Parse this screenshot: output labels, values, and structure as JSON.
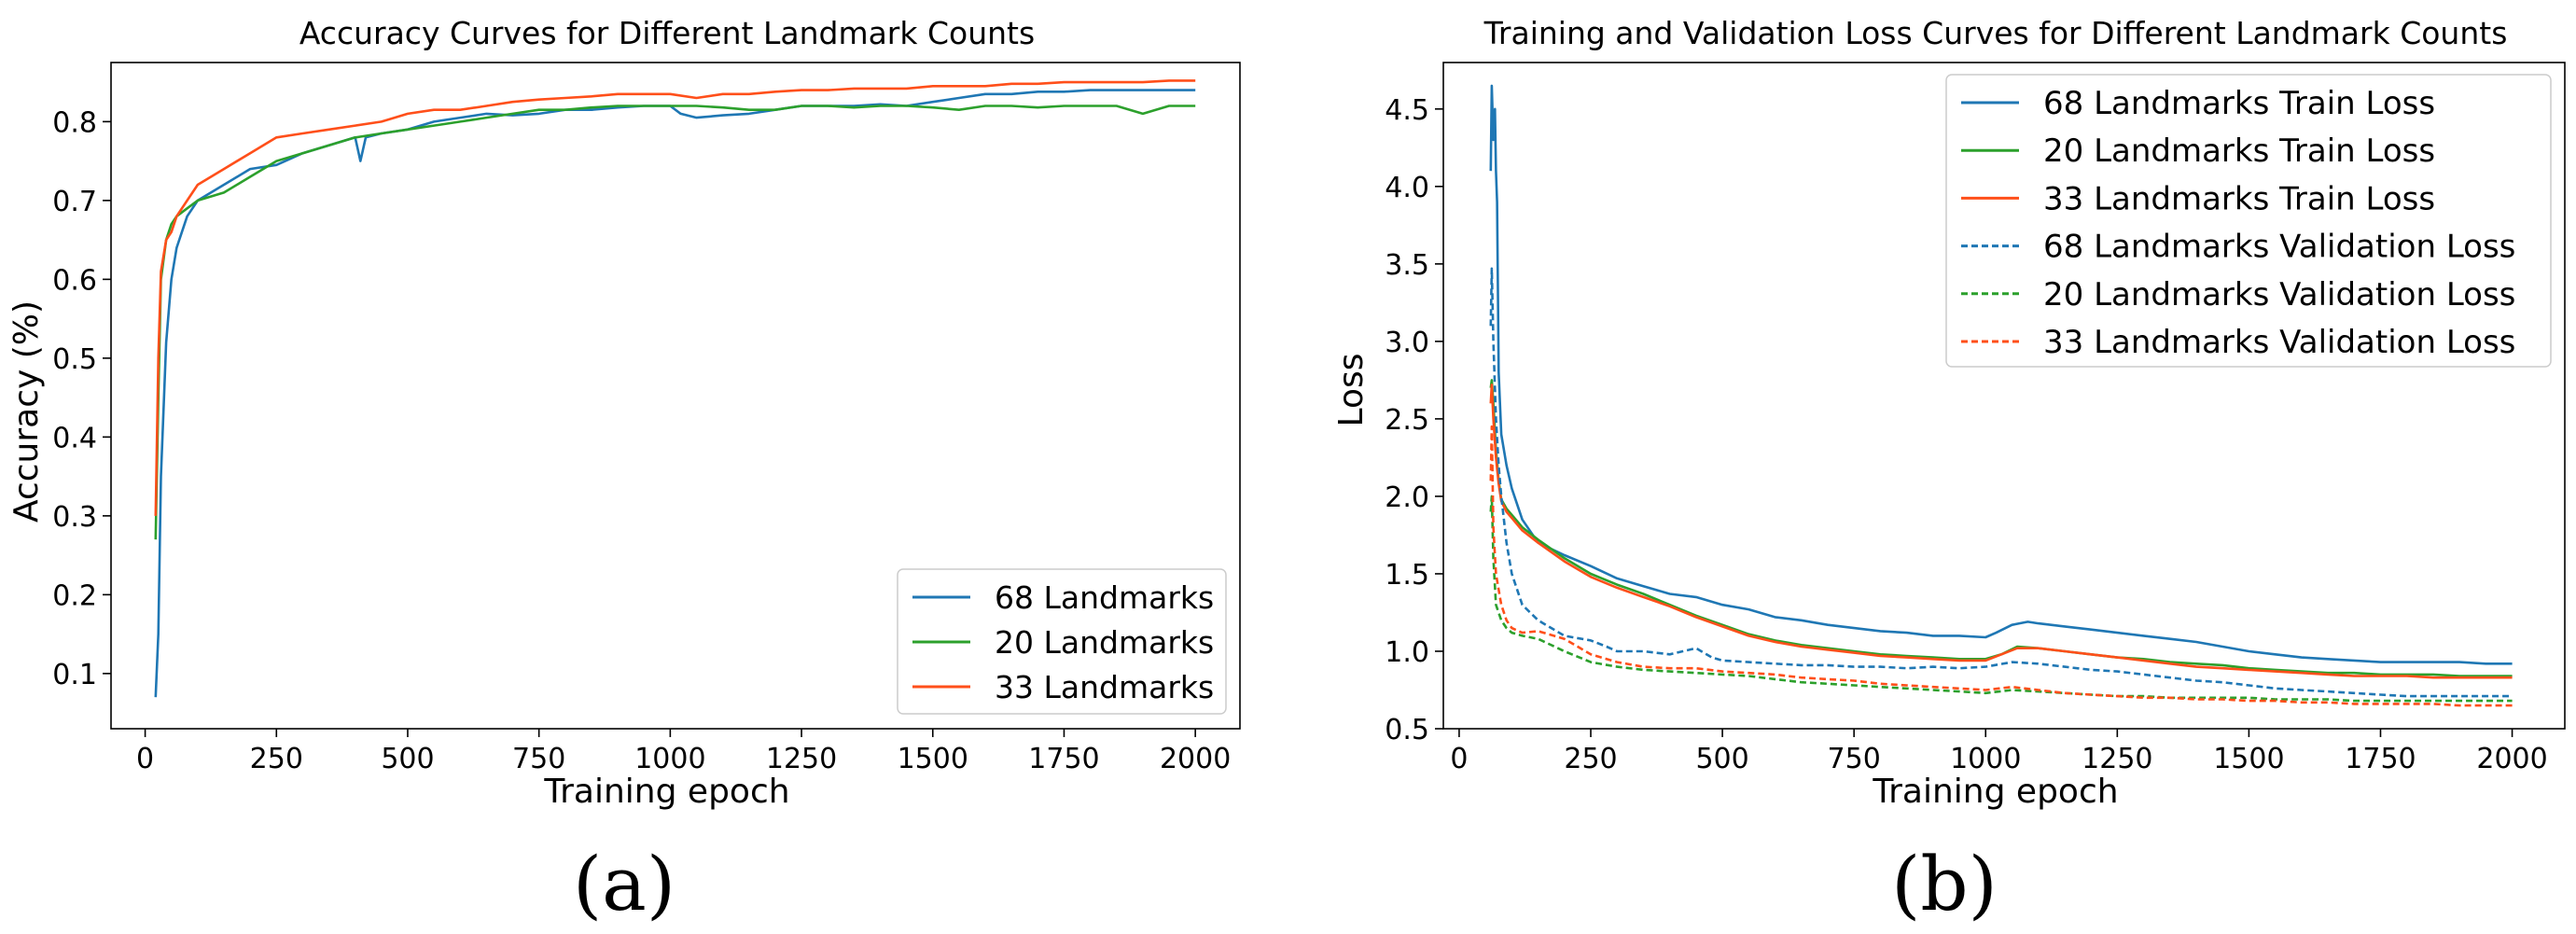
{
  "figure": {
    "panel_labels": [
      "(a)",
      "(b)"
    ]
  },
  "chart_data": [
    {
      "type": "line",
      "title": "Accuracy Curves for Different Landmark Counts",
      "xlabel": "Training epoch",
      "ylabel": "Accuracy (%)",
      "xlim": [
        -65,
        2085
      ],
      "ylim": [
        0.03,
        0.875
      ],
      "xticks": [
        0,
        250,
        500,
        750,
        1000,
        1250,
        1500,
        1750,
        2000
      ],
      "xtick_labels": [
        "0",
        "250",
        "500",
        "750",
        "1000",
        "1250",
        "1500",
        "1750",
        "2000"
      ],
      "yticks": [
        0.1,
        0.2,
        0.3,
        0.4,
        0.5,
        0.6,
        0.7,
        0.8
      ],
      "ytick_labels": [
        "0.1",
        "0.2",
        "0.3",
        "0.4",
        "0.5",
        "0.6",
        "0.7",
        "0.8"
      ],
      "grid": false,
      "legend_position": "lower-right",
      "series": [
        {
          "name": "68 Landmarks",
          "color": "#1f77b4",
          "dash": "solid",
          "x": [
            20,
            25,
            30,
            40,
            50,
            60,
            80,
            100,
            150,
            200,
            250,
            300,
            350,
            400,
            410,
            420,
            450,
            500,
            550,
            600,
            650,
            700,
            750,
            800,
            850,
            900,
            950,
            1000,
            1020,
            1050,
            1100,
            1150,
            1200,
            1250,
            1300,
            1350,
            1400,
            1450,
            1500,
            1550,
            1600,
            1650,
            1700,
            1750,
            1800,
            1850,
            1900,
            1950,
            2000
          ],
          "y": [
            0.07,
            0.15,
            0.35,
            0.52,
            0.6,
            0.64,
            0.68,
            0.7,
            0.72,
            0.74,
            0.745,
            0.76,
            0.77,
            0.78,
            0.75,
            0.78,
            0.785,
            0.79,
            0.8,
            0.805,
            0.81,
            0.808,
            0.81,
            0.815,
            0.815,
            0.818,
            0.82,
            0.82,
            0.81,
            0.805,
            0.808,
            0.81,
            0.815,
            0.82,
            0.82,
            0.82,
            0.822,
            0.82,
            0.825,
            0.83,
            0.835,
            0.835,
            0.838,
            0.838,
            0.84,
            0.84,
            0.84,
            0.84,
            0.84
          ]
        },
        {
          "name": "20 Landmarks",
          "color": "#2ca02c",
          "dash": "solid",
          "x": [
            20,
            25,
            30,
            40,
            50,
            60,
            80,
            100,
            150,
            200,
            250,
            300,
            350,
            400,
            450,
            500,
            550,
            600,
            650,
            700,
            750,
            800,
            850,
            900,
            950,
            1000,
            1050,
            1100,
            1150,
            1200,
            1250,
            1300,
            1350,
            1400,
            1450,
            1500,
            1550,
            1600,
            1650,
            1700,
            1750,
            1800,
            1850,
            1900,
            1950,
            2000
          ],
          "y": [
            0.27,
            0.45,
            0.6,
            0.65,
            0.67,
            0.68,
            0.69,
            0.7,
            0.71,
            0.73,
            0.75,
            0.76,
            0.77,
            0.78,
            0.785,
            0.79,
            0.795,
            0.8,
            0.805,
            0.81,
            0.815,
            0.815,
            0.818,
            0.82,
            0.82,
            0.82,
            0.82,
            0.818,
            0.815,
            0.815,
            0.82,
            0.82,
            0.818,
            0.82,
            0.82,
            0.818,
            0.815,
            0.82,
            0.82,
            0.818,
            0.82,
            0.82,
            0.82,
            0.81,
            0.82,
            0.82
          ]
        },
        {
          "name": "33 Landmarks",
          "color": "#ff4f1a",
          "dash": "solid",
          "x": [
            20,
            25,
            30,
            40,
            50,
            60,
            80,
            100,
            150,
            200,
            250,
            300,
            350,
            400,
            450,
            500,
            550,
            600,
            650,
            700,
            750,
            800,
            850,
            900,
            950,
            1000,
            1050,
            1100,
            1150,
            1200,
            1250,
            1300,
            1350,
            1400,
            1450,
            1500,
            1550,
            1600,
            1650,
            1700,
            1750,
            1800,
            1850,
            1900,
            1950,
            2000
          ],
          "y": [
            0.3,
            0.5,
            0.61,
            0.65,
            0.66,
            0.68,
            0.7,
            0.72,
            0.74,
            0.76,
            0.78,
            0.785,
            0.79,
            0.795,
            0.8,
            0.81,
            0.815,
            0.815,
            0.82,
            0.825,
            0.828,
            0.83,
            0.832,
            0.835,
            0.835,
            0.835,
            0.83,
            0.835,
            0.835,
            0.838,
            0.84,
            0.84,
            0.842,
            0.842,
            0.842,
            0.845,
            0.845,
            0.845,
            0.848,
            0.848,
            0.85,
            0.85,
            0.85,
            0.85,
            0.852,
            0.852
          ]
        }
      ]
    },
    {
      "type": "line",
      "title": "Training and Validation Loss Curves for Different Landmark Counts",
      "xlabel": "Training epoch",
      "ylabel": "Loss",
      "xlim": [
        -30,
        2100
      ],
      "ylim": [
        0.5,
        4.8
      ],
      "xticks": [
        0,
        250,
        500,
        750,
        1000,
        1250,
        1500,
        1750,
        2000
      ],
      "xtick_labels": [
        "0",
        "250",
        "500",
        "750",
        "1000",
        "1250",
        "1500",
        "1750",
        "2000"
      ],
      "yticks": [
        0.5,
        1.0,
        1.5,
        2.0,
        2.5,
        3.0,
        3.5,
        4.0,
        4.5
      ],
      "ytick_labels": [
        "0.5",
        "1.0",
        "1.5",
        "2.0",
        "2.5",
        "3.0",
        "3.5",
        "4.0",
        "4.5"
      ],
      "grid": false,
      "legend_position": "upper-right",
      "series": [
        {
          "name": "68 Landmarks Train Loss",
          "color": "#1f77b4",
          "dash": "solid",
          "x": [
            60,
            62,
            65,
            68,
            70,
            72,
            75,
            80,
            90,
            100,
            120,
            150,
            200,
            250,
            300,
            350,
            400,
            450,
            500,
            550,
            600,
            650,
            700,
            750,
            800,
            850,
            900,
            950,
            1000,
            1020,
            1050,
            1080,
            1100,
            1150,
            1200,
            1250,
            1300,
            1350,
            1400,
            1450,
            1500,
            1550,
            1600,
            1650,
            1700,
            1750,
            1800,
            1850,
            1900,
            1950,
            2000
          ],
          "y": [
            4.1,
            4.65,
            4.3,
            4.5,
            4.1,
            3.9,
            2.8,
            2.4,
            2.2,
            2.05,
            1.85,
            1.7,
            1.62,
            1.55,
            1.47,
            1.42,
            1.37,
            1.35,
            1.3,
            1.27,
            1.22,
            1.2,
            1.17,
            1.15,
            1.13,
            1.12,
            1.1,
            1.1,
            1.09,
            1.12,
            1.17,
            1.19,
            1.18,
            1.16,
            1.14,
            1.12,
            1.1,
            1.08,
            1.06,
            1.03,
            1.0,
            0.98,
            0.96,
            0.95,
            0.94,
            0.93,
            0.93,
            0.93,
            0.93,
            0.92,
            0.92
          ]
        },
        {
          "name": "20 Landmarks Train Loss",
          "color": "#2ca02c",
          "dash": "solid",
          "x": [
            60,
            62,
            65,
            70,
            75,
            80,
            90,
            100,
            120,
            150,
            200,
            250,
            300,
            350,
            400,
            450,
            500,
            550,
            600,
            650,
            700,
            750,
            800,
            850,
            900,
            950,
            1000,
            1030,
            1060,
            1100,
            1150,
            1200,
            1250,
            1300,
            1350,
            1400,
            1450,
            1500,
            1550,
            1600,
            1650,
            1700,
            1750,
            1800,
            1850,
            1900,
            1950,
            2000
          ],
          "y": [
            2.7,
            2.75,
            2.6,
            2.3,
            2.1,
            1.98,
            1.92,
            1.88,
            1.8,
            1.72,
            1.6,
            1.5,
            1.43,
            1.37,
            1.3,
            1.23,
            1.17,
            1.11,
            1.07,
            1.04,
            1.02,
            1.0,
            0.98,
            0.97,
            0.96,
            0.95,
            0.95,
            0.98,
            1.03,
            1.02,
            1.0,
            0.98,
            0.96,
            0.95,
            0.93,
            0.92,
            0.91,
            0.89,
            0.88,
            0.87,
            0.86,
            0.86,
            0.85,
            0.85,
            0.85,
            0.84,
            0.84,
            0.84
          ]
        },
        {
          "name": "33 Landmarks Train Loss",
          "color": "#ff4f1a",
          "dash": "solid",
          "x": [
            60,
            62,
            65,
            70,
            75,
            80,
            90,
            100,
            120,
            150,
            200,
            250,
            300,
            350,
            400,
            450,
            500,
            550,
            600,
            650,
            700,
            750,
            800,
            850,
            900,
            950,
            1000,
            1030,
            1060,
            1100,
            1150,
            1200,
            1250,
            1300,
            1350,
            1400,
            1450,
            1500,
            1550,
            1600,
            1650,
            1700,
            1750,
            1800,
            1850,
            1900,
            1950,
            2000
          ],
          "y": [
            2.6,
            2.72,
            2.5,
            2.25,
            2.08,
            1.97,
            1.9,
            1.86,
            1.78,
            1.7,
            1.58,
            1.48,
            1.41,
            1.35,
            1.29,
            1.22,
            1.16,
            1.1,
            1.06,
            1.03,
            1.01,
            0.99,
            0.97,
            0.96,
            0.95,
            0.94,
            0.94,
            0.98,
            1.02,
            1.02,
            1.0,
            0.98,
            0.96,
            0.94,
            0.92,
            0.9,
            0.89,
            0.88,
            0.87,
            0.86,
            0.85,
            0.84,
            0.84,
            0.84,
            0.83,
            0.83,
            0.83,
            0.83
          ]
        },
        {
          "name": "68 Landmarks Validation Loss",
          "color": "#1f77b4",
          "dash": "dashed",
          "x": [
            60,
            62,
            65,
            70,
            75,
            80,
            90,
            100,
            120,
            150,
            200,
            250,
            280,
            300,
            350,
            400,
            450,
            480,
            500,
            550,
            600,
            650,
            700,
            750,
            800,
            850,
            900,
            950,
            1000,
            1050,
            1100,
            1150,
            1200,
            1250,
            1300,
            1350,
            1400,
            1450,
            1500,
            1550,
            1600,
            1650,
            1700,
            1750,
            1800,
            1850,
            1900,
            1950,
            2000
          ],
          "y": [
            3.1,
            3.47,
            3.0,
            2.5,
            2.2,
            2.0,
            1.7,
            1.5,
            1.3,
            1.2,
            1.1,
            1.07,
            1.03,
            1.0,
            1.0,
            0.98,
            1.02,
            0.96,
            0.94,
            0.93,
            0.92,
            0.91,
            0.91,
            0.9,
            0.9,
            0.89,
            0.9,
            0.89,
            0.9,
            0.93,
            0.92,
            0.9,
            0.88,
            0.87,
            0.85,
            0.83,
            0.81,
            0.8,
            0.78,
            0.76,
            0.75,
            0.74,
            0.73,
            0.72,
            0.71,
            0.71,
            0.71,
            0.71,
            0.71
          ]
        },
        {
          "name": "20 Landmarks Validation Loss",
          "color": "#2ca02c",
          "dash": "dashed",
          "x": [
            60,
            62,
            65,
            70,
            80,
            90,
            100,
            120,
            150,
            200,
            250,
            300,
            350,
            400,
            450,
            500,
            550,
            600,
            650,
            700,
            750,
            800,
            850,
            900,
            950,
            1000,
            1050,
            1100,
            1150,
            1200,
            1250,
            1300,
            1350,
            1400,
            1450,
            1500,
            1550,
            1600,
            1650,
            1700,
            1750,
            1800,
            1850,
            1900,
            1950,
            2000
          ],
          "y": [
            1.9,
            2.0,
            1.6,
            1.3,
            1.2,
            1.15,
            1.12,
            1.1,
            1.08,
            1.0,
            0.93,
            0.9,
            0.88,
            0.87,
            0.86,
            0.85,
            0.84,
            0.82,
            0.8,
            0.79,
            0.78,
            0.77,
            0.76,
            0.75,
            0.74,
            0.73,
            0.75,
            0.74,
            0.73,
            0.72,
            0.71,
            0.71,
            0.7,
            0.7,
            0.7,
            0.7,
            0.69,
            0.69,
            0.69,
            0.68,
            0.68,
            0.68,
            0.68,
            0.68,
            0.68,
            0.68
          ]
        },
        {
          "name": "33 Landmarks Validation Loss",
          "color": "#ff4f1a",
          "dash": "dashed",
          "x": [
            60,
            62,
            65,
            70,
            80,
            90,
            100,
            120,
            150,
            200,
            250,
            300,
            350,
            400,
            450,
            500,
            550,
            600,
            650,
            700,
            750,
            800,
            850,
            900,
            950,
            1000,
            1050,
            1100,
            1150,
            1200,
            1250,
            1300,
            1350,
            1400,
            1450,
            1500,
            1550,
            1600,
            1650,
            1700,
            1750,
            1800,
            1850,
            1900,
            1950,
            2000
          ],
          "y": [
            2.1,
            2.45,
            1.8,
            1.5,
            1.3,
            1.2,
            1.15,
            1.12,
            1.13,
            1.08,
            0.98,
            0.93,
            0.9,
            0.89,
            0.89,
            0.87,
            0.86,
            0.85,
            0.83,
            0.82,
            0.81,
            0.79,
            0.78,
            0.77,
            0.76,
            0.75,
            0.77,
            0.75,
            0.73,
            0.72,
            0.71,
            0.7,
            0.7,
            0.69,
            0.69,
            0.68,
            0.68,
            0.67,
            0.67,
            0.66,
            0.66,
            0.66,
            0.66,
            0.65,
            0.65,
            0.65
          ]
        }
      ]
    }
  ]
}
